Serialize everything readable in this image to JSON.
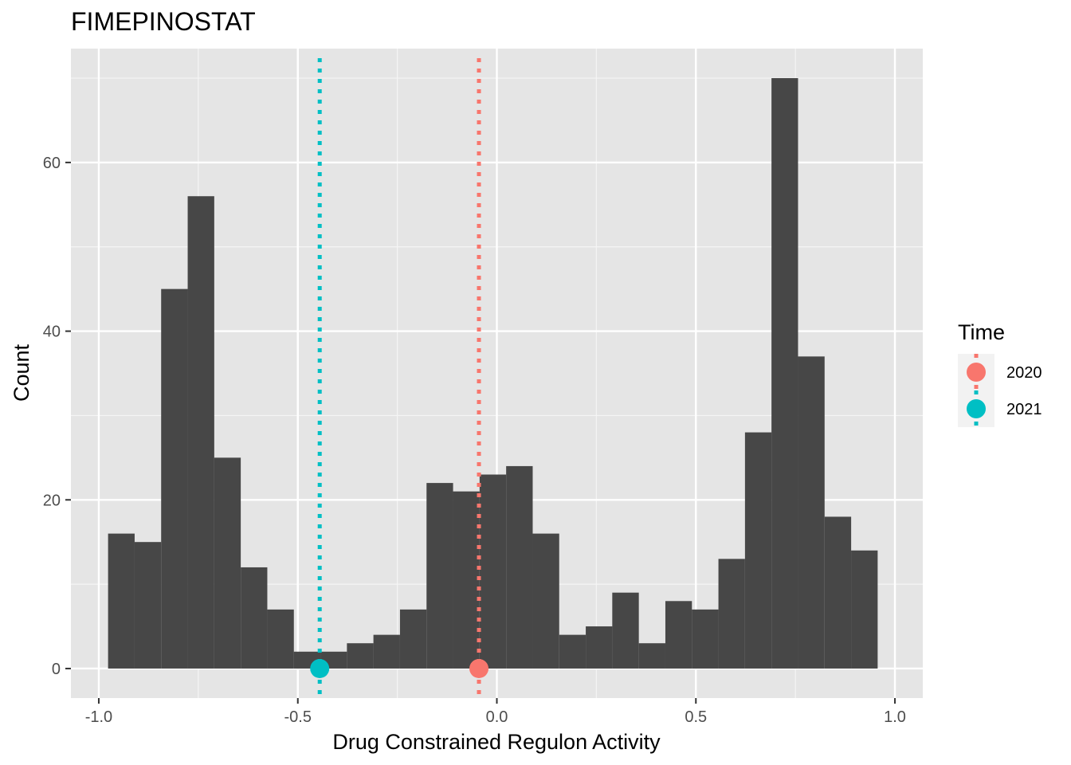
{
  "chart_data": {
    "type": "bar",
    "title": "FIMEPINOSTAT",
    "xlabel": "Drug Constrained Regulon Activity",
    "ylabel": "Count",
    "xlim": [
      -1.07,
      1.07
    ],
    "ylim": [
      -3.5,
      73.5
    ],
    "x_ticks": [
      -1.0,
      -0.5,
      0.0,
      0.5,
      1.0
    ],
    "x_tick_labels": [
      "-1.0",
      "-0.5",
      "0.0",
      "0.5",
      "1.0"
    ],
    "y_ticks": [
      0,
      20,
      40,
      60
    ],
    "y_tick_labels": [
      "0",
      "20",
      "40",
      "60"
    ],
    "bin_width": 0.0667,
    "bins": [
      {
        "x": -0.9433,
        "count": 16
      },
      {
        "x": -0.8767,
        "count": 15
      },
      {
        "x": -0.81,
        "count": 45
      },
      {
        "x": -0.7433,
        "count": 56
      },
      {
        "x": -0.6767,
        "count": 25
      },
      {
        "x": -0.61,
        "count": 12
      },
      {
        "x": -0.5433,
        "count": 7
      },
      {
        "x": -0.4767,
        "count": 2
      },
      {
        "x": -0.41,
        "count": 2
      },
      {
        "x": -0.3433,
        "count": 3
      },
      {
        "x": -0.2767,
        "count": 4
      },
      {
        "x": -0.21,
        "count": 7
      },
      {
        "x": -0.1433,
        "count": 22
      },
      {
        "x": -0.0767,
        "count": 21
      },
      {
        "x": -0.01,
        "count": 23
      },
      {
        "x": 0.0567,
        "count": 24
      },
      {
        "x": 0.1233,
        "count": 16
      },
      {
        "x": 0.19,
        "count": 4
      },
      {
        "x": 0.2567,
        "count": 5
      },
      {
        "x": 0.3233,
        "count": 9
      },
      {
        "x": 0.39,
        "count": 3
      },
      {
        "x": 0.4567,
        "count": 8
      },
      {
        "x": 0.5233,
        "count": 7
      },
      {
        "x": 0.59,
        "count": 13
      },
      {
        "x": 0.6567,
        "count": 28
      },
      {
        "x": 0.7233,
        "count": 70
      },
      {
        "x": 0.79,
        "count": 37
      },
      {
        "x": 0.8567,
        "count": 18
      },
      {
        "x": 0.9233,
        "count": 14
      }
    ],
    "markers": [
      {
        "name": "2020",
        "x": -0.045,
        "y": 0,
        "color": "#F8766D"
      },
      {
        "name": "2021",
        "x": -0.445,
        "y": 0,
        "color": "#00BFC4"
      }
    ],
    "legend": {
      "title": "Time",
      "position": "right"
    },
    "bar_color": "#474747",
    "panel_color": "#E5E5E5",
    "grid": true
  }
}
